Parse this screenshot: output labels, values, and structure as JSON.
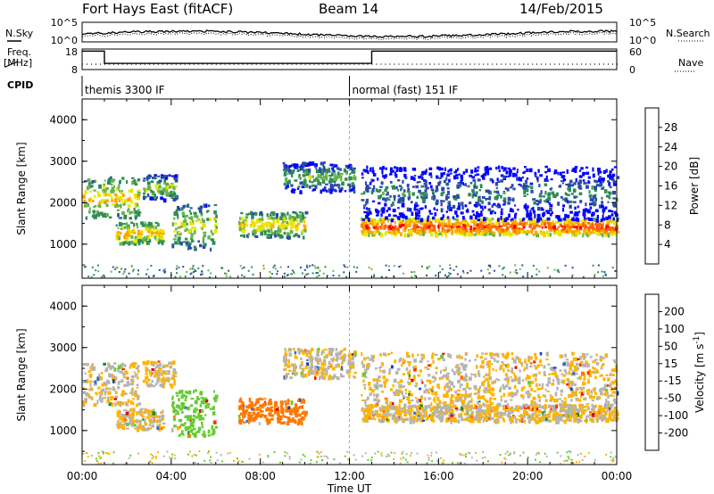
{
  "header": {
    "station": "Fort Hays East (fitACF)",
    "beam": "Beam 14",
    "date": "14/Feb/2015"
  },
  "noise_panel": {
    "left_label": "N.Sky",
    "right_label": "N.Search",
    "ticks_left": [
      "10^5",
      "10^0"
    ],
    "ticks_right": [
      "10^5",
      "10^0"
    ]
  },
  "freq_panel": {
    "left_label": "Freq.",
    "left_unit": "[MHz]",
    "right_label": "Nave",
    "ticks_left": [
      "18",
      "8"
    ],
    "ticks_right": [
      "60",
      "0"
    ],
    "freq_segments": [
      {
        "from": 0,
        "to": 1.0,
        "value": 17
      },
      {
        "from": 1.0,
        "to": 13.0,
        "value": 11
      },
      {
        "from": 13.0,
        "to": 24,
        "value": 17
      }
    ]
  },
  "cpid": {
    "label": "CPID",
    "modes": [
      {
        "name": "themis 3300 IF",
        "start": 0
      },
      {
        "name": "normal (fast) 151 IF",
        "start": 12.0
      }
    ]
  },
  "power_panel": {
    "ylabel": "Slant Range [km]",
    "yticks": [
      "4000",
      "3000",
      "2000",
      "1000"
    ]
  },
  "velocity_panel": {
    "ylabel": "Slant Range [km]",
    "yticks": [
      "4000",
      "3000",
      "2000",
      "1000"
    ]
  },
  "power_scale": {
    "label": "Power [dB]",
    "ticks": [
      "28",
      "24",
      "20",
      "16",
      "12",
      "8",
      "4"
    ],
    "colors": [
      "#0000ff",
      "#2a4aa8",
      "#2e8b57",
      "#66b34b",
      "#e6e600",
      "#ffa500",
      "#ff6600",
      "#ff0000"
    ]
  },
  "velocity_scale": {
    "label": "Velocity [m s",
    "label_sup": "-1",
    "label_end": "]",
    "ticks": [
      "200",
      "100",
      "50",
      "15",
      "-15",
      "-50",
      "-100",
      "-200"
    ],
    "colors": [
      "#1e3cb4",
      "#2d6ecc",
      "#1e8c1e",
      "#66cc33",
      "#b4b4b4",
      "#ffb400",
      "#ff7800",
      "#ff3200",
      "#e60000"
    ]
  },
  "xaxis": {
    "label": "Time UT",
    "ticks": [
      "00:00",
      "04:00",
      "08:00",
      "12:00",
      "16:00",
      "20:00",
      "00:00"
    ]
  },
  "chart_data": {
    "type": "heatmap",
    "title": "Fort Hays East (fitACF)",
    "xlabel": "Time UT",
    "ylabel": "Slant Range [km]",
    "xlim": [
      0,
      24
    ],
    "ylim": [
      180,
      4500
    ],
    "features": [
      {
        "t_start": 0.0,
        "t_end": 2.5,
        "range_center": 2150,
        "range_halfwidth": 500,
        "power": 20,
        "velocity": -15
      },
      {
        "t_start": 1.5,
        "t_end": 3.6,
        "range_center": 1300,
        "range_halfwidth": 250,
        "power": 22,
        "velocity": -15
      },
      {
        "t_start": 2.7,
        "t_end": 4.2,
        "range_center": 2400,
        "range_halfwidth": 300,
        "power": 16,
        "velocity": -15
      },
      {
        "t_start": 4.0,
        "t_end": 6.0,
        "range_center": 1450,
        "range_halfwidth": 550,
        "power": 18,
        "velocity": 40
      },
      {
        "t_start": 7.0,
        "t_end": 10.0,
        "range_center": 1500,
        "range_halfwidth": 300,
        "power": 20,
        "velocity": -60
      },
      {
        "t_start": 9.0,
        "t_end": 12.2,
        "range_center": 2650,
        "range_halfwidth": 350,
        "power": 14,
        "velocity": -15
      },
      {
        "t_start": 12.5,
        "t_end": 24.0,
        "range_center": 1450,
        "range_halfwidth": 200,
        "power": 28,
        "velocity": -15
      },
      {
        "t_start": 12.5,
        "t_end": 24.0,
        "range_center": 2250,
        "range_halfwidth": 650,
        "power": 10,
        "velocity": -15
      }
    ]
  }
}
